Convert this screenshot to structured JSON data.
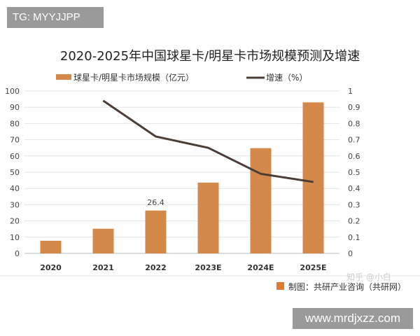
{
  "overlay": {
    "tg_label": "TG: MYYJJPP",
    "site_label": "www.mrdjxzz.com",
    "watermark": "知乎 @小白"
  },
  "source": "制图：共研产业咨询（共研网）",
  "chart_data": {
    "type": "bar+line",
    "title": "2020-2025年中国球星卡/明星卡市场规模预测及增速",
    "categories": [
      "2020",
      "2021",
      "2022",
      "2023E",
      "2024E",
      "2025E"
    ],
    "series": [
      {
        "name": "球星卡/明星卡市场规模（亿元）",
        "type": "bar",
        "axis": "left",
        "color": "#D4894A",
        "values": [
          7.8,
          15.2,
          26.4,
          43.6,
          64.8,
          93.0
        ],
        "data_labels": {
          "2": "26.4"
        }
      },
      {
        "name": "增速（%）",
        "type": "line",
        "axis": "right",
        "color": "#4A3E36",
        "values": [
          null,
          0.94,
          0.72,
          0.65,
          0.49,
          0.44
        ]
      }
    ],
    "ylim_left": [
      0,
      100
    ],
    "yticks_left": [
      "0",
      "10",
      "20",
      "30",
      "40",
      "50",
      "60",
      "70",
      "80",
      "90",
      "100"
    ],
    "ylim_right": [
      0,
      1
    ],
    "yticks_right": [
      "0",
      "0.1",
      "0.2",
      "0.3",
      "0.4",
      "0.5",
      "0.6",
      "0.7",
      "0.8",
      "0.9",
      "1"
    ],
    "grid": true,
    "legend": "top"
  }
}
